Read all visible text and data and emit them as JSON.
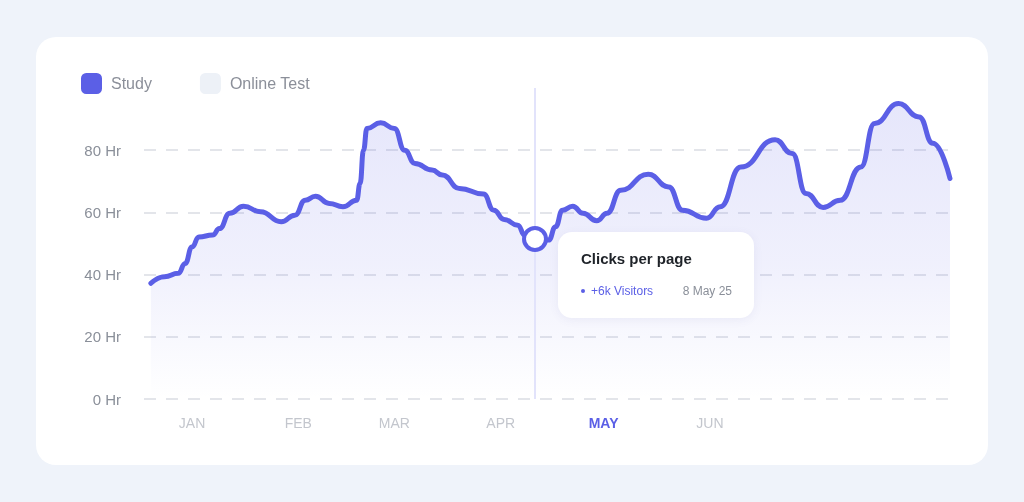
{
  "chart_data": {
    "type": "area",
    "legend": "top left",
    "grid": "y",
    "marker": "none",
    "x": [
      "--01-03",
      "--01-07",
      "--01-11",
      "--01-13",
      "--01-15",
      "--01-17",
      "--01-21",
      "--01-23",
      "--01-26",
      "--01-30",
      "--02-04",
      "--02-10",
      "--02-14",
      "--02-17",
      "--02-20",
      "--02-24",
      "--02-28",
      "--03-04",
      "--03-05",
      "--03-06",
      "--03-07",
      "--03-11",
      "--03-15",
      "--03-18",
      "--03-21",
      "--03-26",
      "--03-29",
      "--04-03",
      "--04-10",
      "--04-13",
      "--04-16",
      "--04-20",
      "--04-22",
      "--04-25",
      "--04-29",
      "--05-01",
      "--05-03",
      "--05-06",
      "--05-09",
      "--05-13",
      "--05-16",
      "--05-20",
      "--05-28",
      "--06-03",
      "--06-07",
      "--06-14",
      "--06-18",
      "--06-24",
      "--07-04",
      "--07-09",
      "--07-13",
      "--07-18",
      "--07-23",
      "--07-29",
      "--08-02",
      "--08-09",
      "--08-15",
      "--08-19",
      "--08-24"
    ],
    "series": [
      {
        "name": "Study",
        "color": "#5b5fe6",
        "values": [
          37.2,
          39.3,
          40.4,
          43.6,
          48.9,
          52.1,
          52.7,
          54.8,
          59.7,
          62.0,
          60.2,
          57.0,
          59.1,
          63.9,
          65.2,
          62.9,
          61.8,
          63.9,
          69.3,
          80.0,
          87.0,
          88.8,
          87.0,
          80.0,
          75.7,
          73.6,
          72.0,
          67.7,
          65.9,
          60.7,
          57.7,
          55.9,
          52.7,
          51.6,
          51.1,
          55.4,
          60.7,
          62.0,
          59.7,
          57.3,
          59.7,
          67.1,
          72.3,
          68.2,
          60.7,
          58.1,
          61.8,
          74.6,
          83.4,
          78.9,
          66.1,
          61.6,
          63.9,
          74.6,
          88.6,
          95.0,
          90.7,
          82.2,
          70.9
        ]
      },
      {
        "name": "Online Test",
        "color": "#edf1f7",
        "values": [
          null,
          null,
          null,
          null,
          null,
          null,
          null,
          null,
          null,
          null,
          null,
          null,
          null,
          null,
          null,
          null,
          null,
          null,
          null,
          null,
          null,
          null,
          null,
          null,
          null,
          null,
          null,
          null,
          null,
          null,
          null,
          null,
          null,
          null,
          null,
          null,
          null,
          null,
          null,
          null,
          null,
          null,
          null,
          null,
          null,
          null,
          null,
          null,
          null,
          null,
          null,
          null,
          null,
          null,
          null,
          null,
          null,
          null,
          null
        ]
      }
    ],
    "xlim": [
      "--01-01",
      "--08-24"
    ],
    "xticks": [
      {
        "value": "--01-15",
        "label": "JAN"
      },
      {
        "value": "--02-15",
        "label": "FEB"
      },
      {
        "value": "--03-15",
        "label": "MAR"
      },
      {
        "value": "--04-15",
        "label": "APR"
      },
      {
        "value": "--05-15",
        "label": "MAY"
      },
      {
        "value": "--06-15",
        "label": "JUN"
      }
    ],
    "ylim": [
      0,
      100
    ],
    "yticks": [
      {
        "value": 0,
        "label": "0 Hr"
      },
      {
        "value": 20,
        "label": "20 Hr"
      },
      {
        "value": 40,
        "label": "40 Hr"
      },
      {
        "value": 60,
        "label": "60 Hr"
      },
      {
        "value": 80,
        "label": "80 Hr"
      }
    ],
    "ref_lines": [
      {
        "axis": "x",
        "value": "--04-25",
        "color": "#e2e3fb"
      }
    ],
    "annotations": [
      "Clicks per page",
      "+6k Visitors",
      "8 May 25"
    ]
  }
}
